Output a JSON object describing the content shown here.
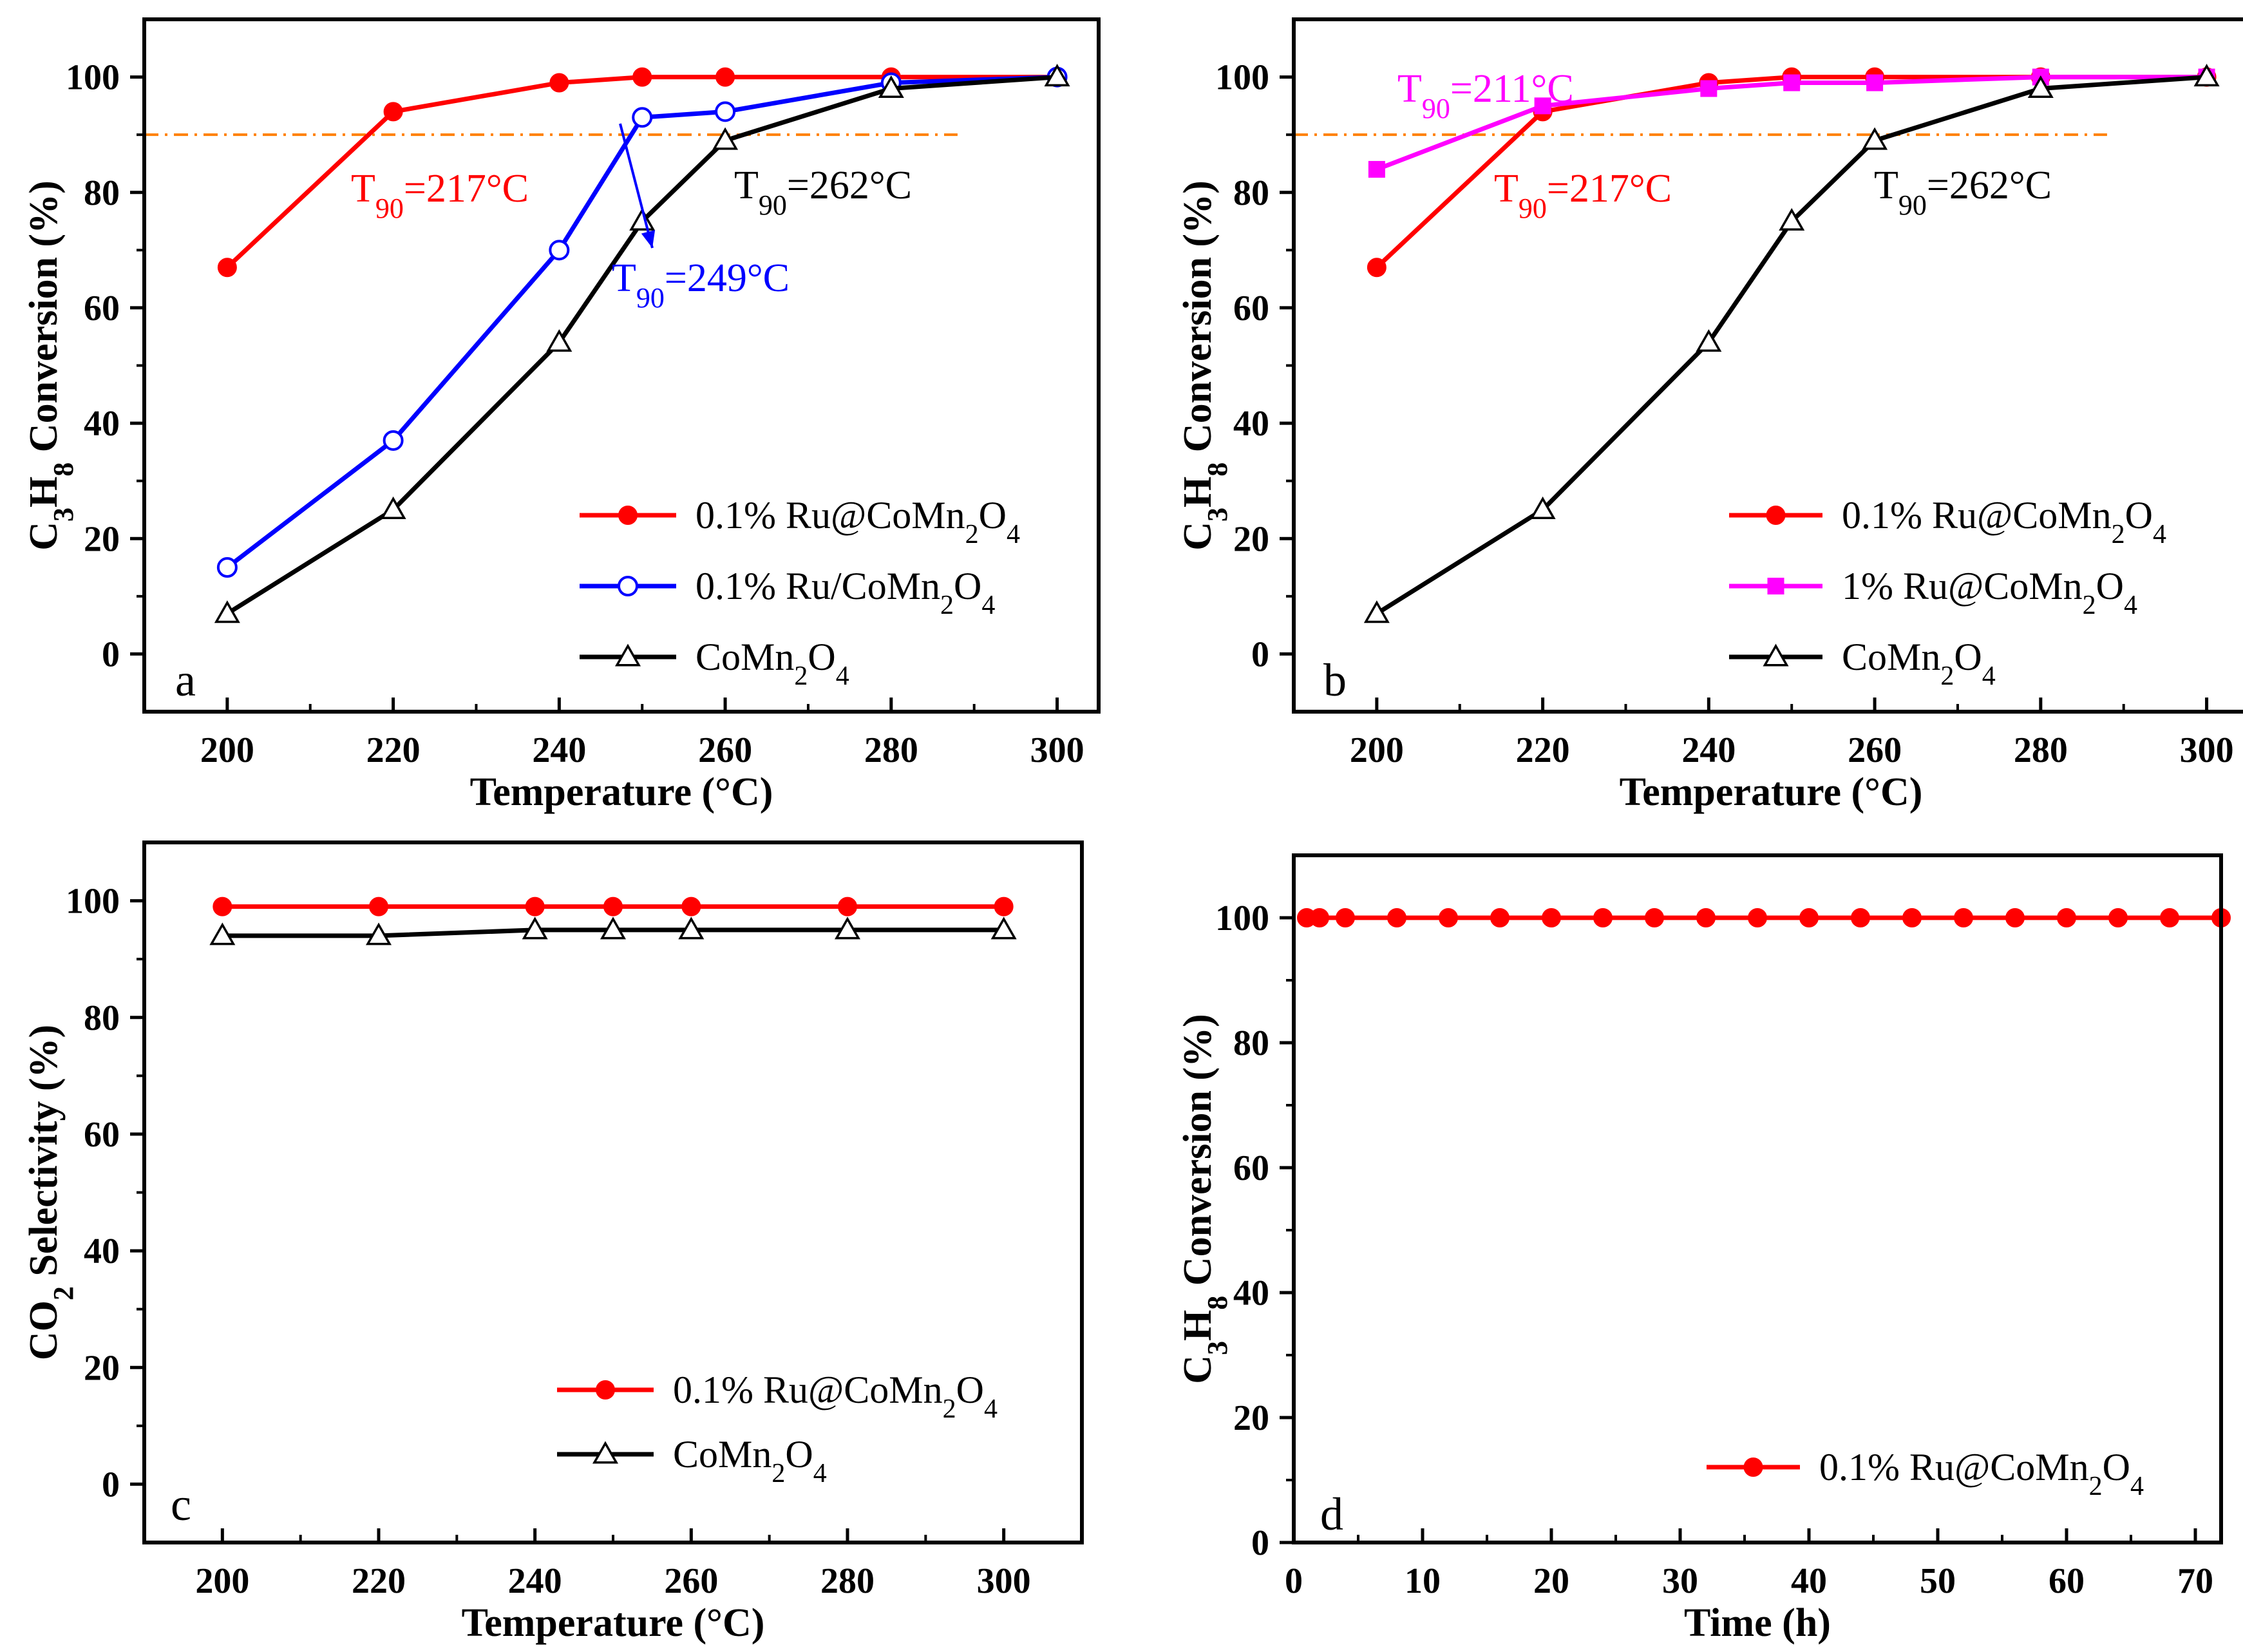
{
  "figure": {
    "background": "#ffffff"
  },
  "chart_data": [
    {
      "panel": "a",
      "type": "line",
      "xlabel": "Temperature (°C)",
      "ylabel": "C3H8 Conversion (%)",
      "ylabel_parts": [
        "C",
        "3",
        "H",
        "8",
        " Conversion (%)"
      ],
      "xlim": [
        190,
        305
      ],
      "ylim": [
        -10,
        110
      ],
      "xticks": [
        200,
        220,
        240,
        260,
        280,
        300
      ],
      "yticks": [
        0,
        20,
        40,
        60,
        80,
        100
      ],
      "grid": false,
      "legend_position": "lower-right",
      "x": [
        200,
        220,
        240,
        250,
        260,
        280,
        300
      ],
      "series": [
        {
          "name": "0.1% Ru@CoMn2O4",
          "legend": [
            "0.1% Ru@CoMn",
            "2",
            "O",
            "4",
            ""
          ],
          "color": "#ff0000",
          "marker": "filled-circle",
          "values": [
            67,
            94,
            99,
            100,
            100,
            100,
            100
          ]
        },
        {
          "name": "0.1% Ru/CoMn2O4",
          "legend": [
            "0.1% Ru/CoMn",
            "2",
            "O",
            "4",
            ""
          ],
          "color": "#0000ff",
          "marker": "open-circle",
          "values": [
            15,
            37,
            70,
            93,
            94,
            99,
            100
          ]
        },
        {
          "name": "CoMn2O4",
          "legend": [
            "CoMn",
            "2",
            "O",
            "4",
            ""
          ],
          "color": "#000000",
          "marker": "open-triangle",
          "values": [
            7,
            25,
            54,
            75,
            89,
            98,
            100
          ]
        }
      ],
      "reference_line": {
        "y": 90,
        "x_range": [
          190,
          288
        ],
        "color": "#ff8000",
        "style": "dash-dot"
      },
      "annotations": [
        {
          "parts": [
            "T",
            "90",
            "=217°C"
          ],
          "color": "#ff0000"
        },
        {
          "parts": [
            "T",
            "90",
            "=262°C"
          ],
          "color": "#000000"
        },
        {
          "parts": [
            "T",
            "90",
            "=249°C"
          ],
          "color": "#0000ff"
        }
      ]
    },
    {
      "panel": "b",
      "type": "line",
      "xlabel": "Temperature (°C)",
      "ylabel": "C3H8 Conversion (%)",
      "ylabel_parts": [
        "C",
        "3",
        "H",
        "8",
        " Conversion (%)"
      ],
      "xlim": [
        190,
        305
      ],
      "ylim": [
        -10,
        110
      ],
      "xticks": [
        200,
        220,
        240,
        260,
        280,
        300
      ],
      "yticks": [
        0,
        20,
        40,
        60,
        80,
        100
      ],
      "grid": false,
      "legend_position": "lower-right",
      "x": [
        200,
        220,
        240,
        250,
        260,
        280,
        300
      ],
      "series": [
        {
          "name": "0.1% Ru@CoMn2O4",
          "legend": [
            "0.1% Ru@CoMn",
            "2",
            "O",
            "4",
            ""
          ],
          "color": "#ff0000",
          "marker": "filled-circle",
          "values": [
            67,
            94,
            99,
            100,
            100,
            100,
            100
          ]
        },
        {
          "name": "1% Ru@CoMn2O4",
          "legend": [
            "1% Ru@CoMn",
            "2",
            "O",
            "4",
            ""
          ],
          "color": "#ff00ff",
          "marker": "filled-square",
          "values": [
            84,
            95,
            98,
            99,
            99,
            100,
            100
          ]
        },
        {
          "name": "CoMn2O4",
          "legend": [
            "CoMn",
            "2",
            "O",
            "4",
            ""
          ],
          "color": "#000000",
          "marker": "open-triangle",
          "values": [
            7,
            25,
            54,
            75,
            89,
            98,
            100
          ]
        }
      ],
      "reference_line": {
        "y": 90,
        "x_range": [
          190,
          288
        ],
        "color": "#ff8000",
        "style": "dash-dot"
      },
      "annotations": [
        {
          "parts": [
            "T",
            "90",
            "=211°C"
          ],
          "color": "#ff00ff"
        },
        {
          "parts": [
            "T",
            "90",
            "=217°C"
          ],
          "color": "#ff0000"
        },
        {
          "parts": [
            "T",
            "90",
            "=262°C"
          ],
          "color": "#000000"
        }
      ]
    },
    {
      "panel": "c",
      "type": "line",
      "xlabel": "Temperature (°C)",
      "ylabel": "CO2 Selectivity (%)",
      "ylabel_parts": [
        "CO",
        "2",
        " Selectivity (%)",
        "",
        ""
      ],
      "xlim": [
        190,
        310
      ],
      "ylim": [
        -10,
        110
      ],
      "xticks": [
        200,
        220,
        240,
        260,
        280,
        300
      ],
      "yticks": [
        0,
        20,
        40,
        60,
        80,
        100
      ],
      "grid": false,
      "legend_position": "lower-right",
      "x": [
        200,
        220,
        240,
        250,
        260,
        280,
        300
      ],
      "series": [
        {
          "name": "0.1% Ru@CoMn2O4",
          "legend": [
            "0.1% Ru@CoMn",
            "2",
            "O",
            "4",
            ""
          ],
          "color": "#ff0000",
          "marker": "filled-circle",
          "values": [
            99,
            99,
            99,
            99,
            99,
            99,
            99
          ]
        },
        {
          "name": "CoMn2O4",
          "legend": [
            "CoMn",
            "2",
            "O",
            "4",
            ""
          ],
          "color": "#000000",
          "marker": "open-triangle",
          "values": [
            94,
            94,
            95,
            95,
            95,
            95,
            95
          ]
        }
      ],
      "annotations": []
    },
    {
      "panel": "d",
      "type": "line",
      "xlabel": "Time (h)",
      "ylabel": "C3H8 Conversion (%)",
      "ylabel_parts": [
        "C",
        "3",
        "H",
        "8",
        " Conversion (%)"
      ],
      "xlim": [
        0,
        72
      ],
      "ylim": [
        0,
        110
      ],
      "xticks": [
        0,
        10,
        20,
        30,
        40,
        50,
        60,
        70
      ],
      "yticks": [
        0,
        20,
        40,
        60,
        80,
        100
      ],
      "grid": false,
      "legend_position": "lower-right",
      "x": [
        1,
        2,
        4,
        8,
        12,
        16,
        20,
        24,
        28,
        32,
        36,
        40,
        44,
        48,
        52,
        56,
        60,
        64,
        68,
        72
      ],
      "series": [
        {
          "name": "0.1% Ru@CoMn2O4",
          "legend": [
            "0.1% Ru@CoMn",
            "2",
            "O",
            "4",
            ""
          ],
          "color": "#ff0000",
          "marker": "filled-circle",
          "values": [
            100,
            100,
            100,
            100,
            100,
            100,
            100,
            100,
            100,
            100,
            100,
            100,
            100,
            100,
            100,
            100,
            100,
            100,
            100,
            100
          ]
        }
      ],
      "annotations": []
    }
  ]
}
